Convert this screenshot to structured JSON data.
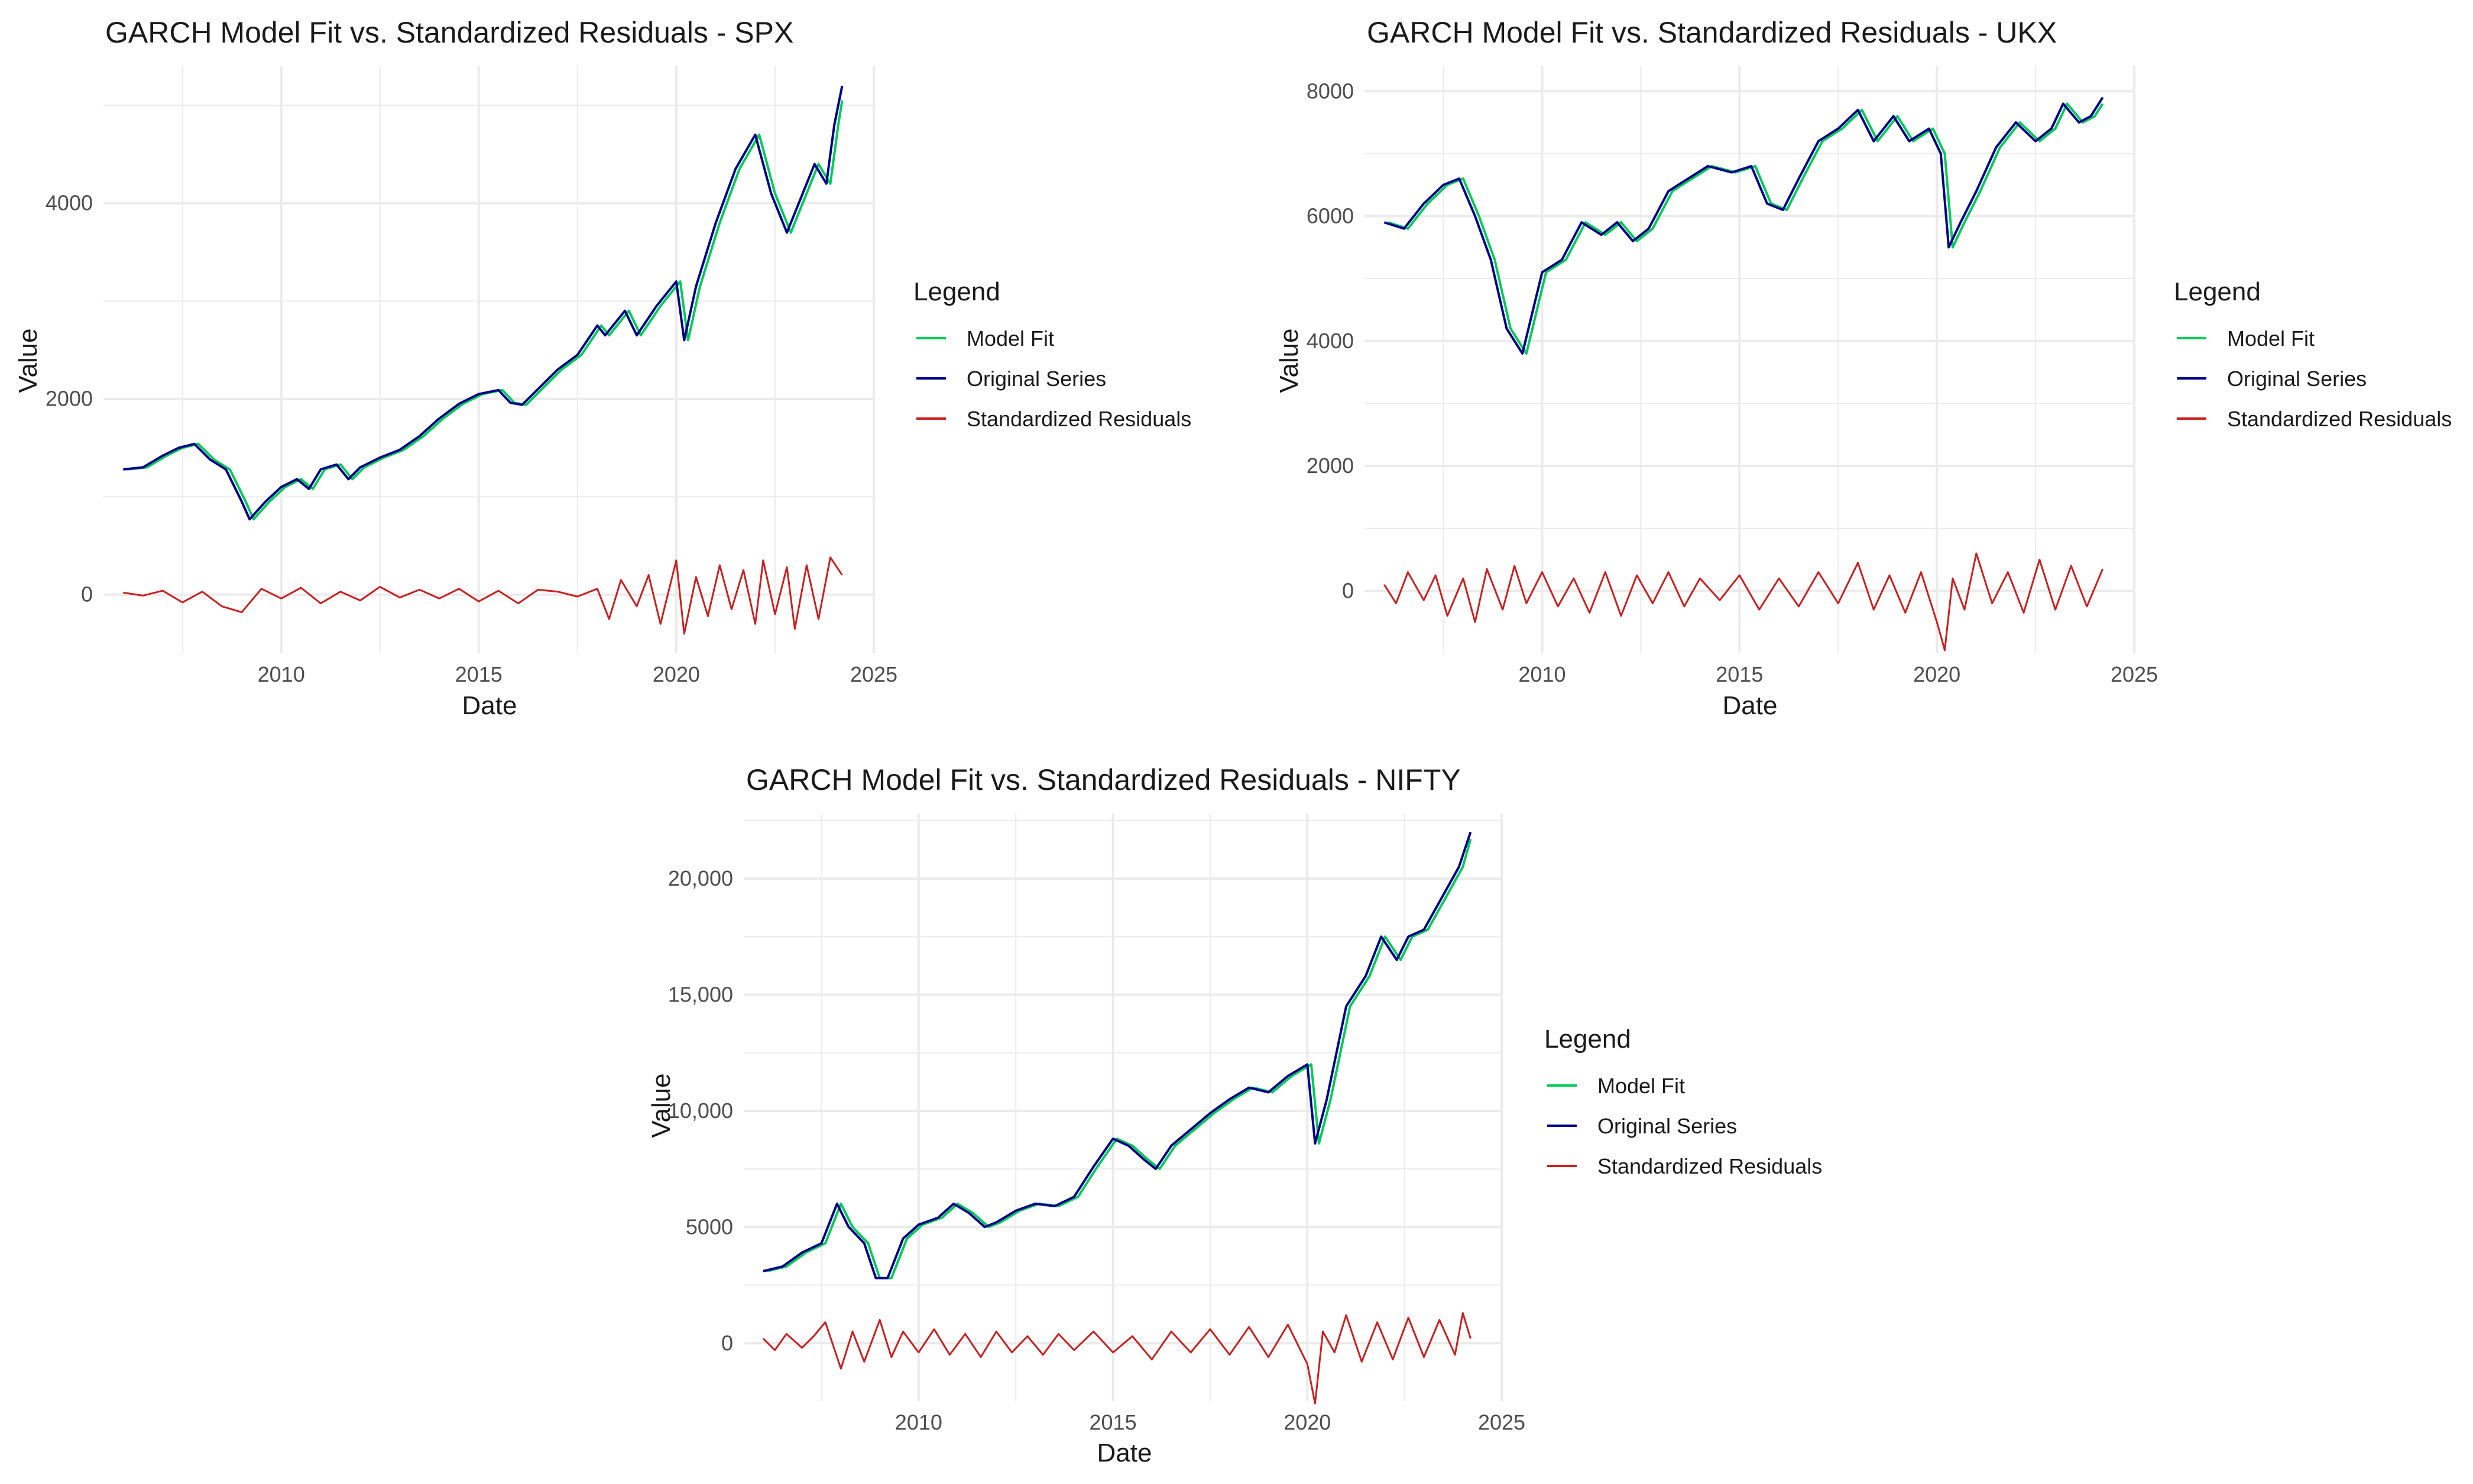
{
  "colors": {
    "model_fit": "#00cc55",
    "original_series": "#00008b",
    "standardized_residuals": "#cc1f1f",
    "grid": "#ebebeb",
    "text": "#1a1a1a",
    "tick_text": "#4d4d4d"
  },
  "chart_data": [
    {
      "id": "spx",
      "type": "line",
      "title": "GARCH Model Fit vs. Standardized Residuals - SPX",
      "xlabel": "Date",
      "ylabel": "Value",
      "xlim": [
        2005.5,
        2025
      ],
      "ylim": [
        -600,
        5400
      ],
      "xticks": [
        2010,
        2015,
        2020,
        2025
      ],
      "yticks": [
        0,
        2000,
        4000
      ],
      "ytick_labels": [
        "0",
        "2000",
        "4000"
      ],
      "legend": {
        "title": "Legend",
        "placement": "right",
        "entries": [
          "Model Fit",
          "Original Series",
          "Standardized Residuals"
        ]
      },
      "series": [
        {
          "name": "Original Series",
          "x": [
            2006.0,
            2006.5,
            2007.0,
            2007.4,
            2007.8,
            2008.2,
            2008.6,
            2009.0,
            2009.2,
            2009.6,
            2010.0,
            2010.4,
            2010.7,
            2011.0,
            2011.4,
            2011.7,
            2012.0,
            2012.5,
            2013.0,
            2013.5,
            2014.0,
            2014.5,
            2015.0,
            2015.5,
            2015.8,
            2016.1,
            2016.5,
            2017.0,
            2017.5,
            2018.0,
            2018.2,
            2018.7,
            2019.0,
            2019.5,
            2020.0,
            2020.2,
            2020.5,
            2021.0,
            2021.5,
            2022.0,
            2022.4,
            2022.8,
            2023.0,
            2023.5,
            2023.8,
            2024.0,
            2024.2
          ],
          "values": [
            1280,
            1300,
            1420,
            1500,
            1540,
            1380,
            1280,
            950,
            770,
            950,
            1100,
            1180,
            1080,
            1280,
            1330,
            1180,
            1300,
            1400,
            1480,
            1620,
            1800,
            1950,
            2050,
            2090,
            1960,
            1940,
            2100,
            2300,
            2450,
            2750,
            2650,
            2900,
            2650,
            2950,
            3200,
            2600,
            3150,
            3800,
            4350,
            4700,
            4100,
            3700,
            3900,
            4400,
            4200,
            4800,
            5200
          ]
        },
        {
          "name": "Model Fit",
          "x": [
            2006.1,
            2006.6,
            2007.1,
            2007.5,
            2007.9,
            2008.3,
            2008.7,
            2009.1,
            2009.3,
            2009.7,
            2010.1,
            2010.5,
            2010.8,
            2011.1,
            2011.5,
            2011.8,
            2012.1,
            2012.6,
            2013.1,
            2013.6,
            2014.1,
            2014.6,
            2015.1,
            2015.6,
            2015.9,
            2016.2,
            2016.6,
            2017.1,
            2017.6,
            2018.1,
            2018.3,
            2018.8,
            2019.1,
            2019.6,
            2020.1,
            2020.3,
            2020.6,
            2021.1,
            2021.6,
            2022.1,
            2022.5,
            2022.9,
            2023.1,
            2023.6,
            2023.9,
            2024.1,
            2024.2
          ],
          "values": [
            1280,
            1300,
            1420,
            1500,
            1540,
            1380,
            1280,
            950,
            770,
            950,
            1100,
            1180,
            1080,
            1280,
            1330,
            1180,
            1300,
            1400,
            1480,
            1620,
            1800,
            1950,
            2050,
            2090,
            1960,
            1940,
            2100,
            2300,
            2450,
            2750,
            2650,
            2900,
            2650,
            2950,
            3200,
            2600,
            3150,
            3800,
            4350,
            4700,
            4100,
            3700,
            3900,
            4400,
            4200,
            4800,
            5050
          ]
        },
        {
          "name": "Standardized Residuals",
          "x": [
            2006.0,
            2006.5,
            2007.0,
            2007.5,
            2008.0,
            2008.5,
            2009.0,
            2009.5,
            2010.0,
            2010.5,
            2011.0,
            2011.5,
            2012.0,
            2012.5,
            2013.0,
            2013.5,
            2014.0,
            2014.5,
            2015.0,
            2015.5,
            2016.0,
            2016.5,
            2017.0,
            2017.5,
            2018.0,
            2018.3,
            2018.6,
            2019.0,
            2019.3,
            2019.6,
            2020.0,
            2020.2,
            2020.5,
            2020.8,
            2021.1,
            2021.4,
            2021.7,
            2022.0,
            2022.2,
            2022.5,
            2022.8,
            2023.0,
            2023.3,
            2023.6,
            2023.9,
            2024.2
          ],
          "values": [
            20,
            -10,
            40,
            -80,
            30,
            -120,
            -180,
            60,
            -40,
            70,
            -90,
            30,
            -60,
            80,
            -30,
            50,
            -40,
            60,
            -70,
            40,
            -90,
            50,
            30,
            -20,
            60,
            -250,
            150,
            -120,
            200,
            -300,
            350,
            -400,
            180,
            -220,
            300,
            -150,
            250,
            -300,
            350,
            -200,
            280,
            -350,
            300,
            -250,
            380,
            200
          ]
        }
      ]
    },
    {
      "id": "ukx",
      "type": "line",
      "title": "GARCH Model Fit vs. Standardized Residuals - UKX",
      "xlabel": "Date",
      "ylabel": "Value",
      "xlim": [
        2005.5,
        2025
      ],
      "ylim": [
        -1000,
        8400
      ],
      "xticks": [
        2010,
        2015,
        2020,
        2025
      ],
      "yticks": [
        0,
        2000,
        4000,
        6000,
        8000
      ],
      "ytick_labels": [
        "0",
        "2000",
        "4000",
        "6000",
        "8000"
      ],
      "legend": {
        "title": "Legend",
        "placement": "right",
        "entries": [
          "Model Fit",
          "Original Series",
          "Standardized Residuals"
        ]
      },
      "series": [
        {
          "name": "Original Series",
          "x": [
            2006.0,
            2006.5,
            2007.0,
            2007.5,
            2007.9,
            2008.3,
            2008.7,
            2009.1,
            2009.5,
            2010.0,
            2010.5,
            2011.0,
            2011.5,
            2011.9,
            2012.3,
            2012.7,
            2013.2,
            2013.7,
            2014.2,
            2014.8,
            2015.3,
            2015.7,
            2016.1,
            2016.5,
            2017.0,
            2017.5,
            2018.0,
            2018.4,
            2018.9,
            2019.3,
            2019.8,
            2020.1,
            2020.3,
            2020.6,
            2021.0,
            2021.5,
            2022.0,
            2022.5,
            2022.9,
            2023.2,
            2023.6,
            2023.9,
            2024.2
          ],
          "values": [
            5900,
            5800,
            6200,
            6500,
            6600,
            6000,
            5300,
            4200,
            3800,
            5100,
            5300,
            5900,
            5700,
            5900,
            5600,
            5800,
            6400,
            6600,
            6800,
            6700,
            6800,
            6200,
            6100,
            6600,
            7200,
            7400,
            7700,
            7200,
            7600,
            7200,
            7400,
            7000,
            5500,
            5900,
            6400,
            7100,
            7500,
            7200,
            7400,
            7800,
            7500,
            7600,
            7900
          ]
        },
        {
          "name": "Model Fit",
          "x": [
            2006.1,
            2006.6,
            2007.1,
            2007.6,
            2008.0,
            2008.4,
            2008.8,
            2009.2,
            2009.6,
            2010.1,
            2010.6,
            2011.1,
            2011.6,
            2012.0,
            2012.4,
            2012.8,
            2013.3,
            2013.8,
            2014.3,
            2014.9,
            2015.4,
            2015.8,
            2016.2,
            2016.6,
            2017.1,
            2017.6,
            2018.1,
            2018.5,
            2019.0,
            2019.4,
            2019.9,
            2020.2,
            2020.4,
            2020.7,
            2021.1,
            2021.6,
            2022.1,
            2022.6,
            2023.0,
            2023.3,
            2023.7,
            2024.0,
            2024.2
          ],
          "values": [
            5900,
            5800,
            6200,
            6500,
            6600,
            6000,
            5300,
            4200,
            3800,
            5100,
            5300,
            5900,
            5700,
            5900,
            5600,
            5800,
            6400,
            6600,
            6800,
            6700,
            6800,
            6200,
            6100,
            6600,
            7200,
            7400,
            7700,
            7200,
            7600,
            7200,
            7400,
            7000,
            5500,
            5900,
            6400,
            7100,
            7500,
            7200,
            7400,
            7800,
            7500,
            7600,
            7800
          ]
        },
        {
          "name": "Standardized Residuals",
          "x": [
            2006.0,
            2006.3,
            2006.6,
            2007.0,
            2007.3,
            2007.6,
            2008.0,
            2008.3,
            2008.6,
            2009.0,
            2009.3,
            2009.6,
            2010.0,
            2010.4,
            2010.8,
            2011.2,
            2011.6,
            2012.0,
            2012.4,
            2012.8,
            2013.2,
            2013.6,
            2014.0,
            2014.5,
            2015.0,
            2015.5,
            2016.0,
            2016.5,
            2017.0,
            2017.5,
            2018.0,
            2018.4,
            2018.8,
            2019.2,
            2019.6,
            2020.0,
            2020.2,
            2020.4,
            2020.7,
            2021.0,
            2021.4,
            2021.8,
            2022.2,
            2022.6,
            2023.0,
            2023.4,
            2023.8,
            2024.2
          ],
          "values": [
            100,
            -200,
            300,
            -150,
            250,
            -400,
            200,
            -500,
            350,
            -300,
            400,
            -200,
            300,
            -250,
            200,
            -350,
            300,
            -400,
            250,
            -200,
            300,
            -250,
            200,
            -150,
            250,
            -300,
            200,
            -250,
            300,
            -200,
            450,
            -300,
            250,
            -350,
            300,
            -500,
            -950,
            200,
            -300,
            600,
            -200,
            300,
            -350,
            500,
            -300,
            400,
            -250,
            350
          ]
        }
      ]
    },
    {
      "id": "nifty",
      "type": "line",
      "title": "GARCH Model Fit vs. Standardized Residuals - NIFTY",
      "xlabel": "Date",
      "ylabel": "Value",
      "xlim": [
        2005.5,
        2025
      ],
      "ylim": [
        -2500,
        22800
      ],
      "xticks": [
        2010,
        2015,
        2020,
        2025
      ],
      "yticks": [
        0,
        5000,
        10000,
        15000,
        20000
      ],
      "ytick_labels": [
        "0",
        "5000",
        "10,000",
        "15,000",
        "20,000"
      ],
      "legend": {
        "title": "Legend",
        "placement": "right",
        "entries": [
          "Model Fit",
          "Original Series",
          "Standardized Residuals"
        ]
      },
      "series": [
        {
          "name": "Original Series",
          "x": [
            2006.0,
            2006.5,
            2007.0,
            2007.5,
            2007.9,
            2008.2,
            2008.6,
            2008.9,
            2009.2,
            2009.6,
            2010.0,
            2010.5,
            2010.9,
            2011.3,
            2011.7,
            2012.0,
            2012.5,
            2013.0,
            2013.5,
            2014.0,
            2014.5,
            2015.0,
            2015.4,
            2015.8,
            2016.1,
            2016.5,
            2017.0,
            2017.5,
            2018.0,
            2018.5,
            2019.0,
            2019.5,
            2020.0,
            2020.2,
            2020.5,
            2021.0,
            2021.5,
            2021.9,
            2022.3,
            2022.6,
            2023.0,
            2023.5,
            2023.9,
            2024.2
          ],
          "values": [
            3100,
            3300,
            3900,
            4300,
            6000,
            5000,
            4300,
            2800,
            2800,
            4500,
            5100,
            5400,
            6000,
            5600,
            5000,
            5200,
            5700,
            6000,
            5900,
            6300,
            7600,
            8800,
            8500,
            7900,
            7500,
            8500,
            9200,
            9900,
            10500,
            11000,
            10800,
            11500,
            12000,
            8600,
            10500,
            14500,
            15800,
            17500,
            16500,
            17500,
            17800,
            19300,
            20500,
            22000
          ]
        },
        {
          "name": "Model Fit",
          "x": [
            2006.1,
            2006.6,
            2007.1,
            2007.6,
            2008.0,
            2008.3,
            2008.7,
            2009.0,
            2009.3,
            2009.7,
            2010.1,
            2010.6,
            2011.0,
            2011.4,
            2011.8,
            2012.1,
            2012.6,
            2013.1,
            2013.6,
            2014.1,
            2014.6,
            2015.1,
            2015.5,
            2015.9,
            2016.2,
            2016.6,
            2017.1,
            2017.6,
            2018.1,
            2018.6,
            2019.1,
            2019.6,
            2020.1,
            2020.3,
            2020.6,
            2021.1,
            2021.6,
            2022.0,
            2022.4,
            2022.7,
            2023.1,
            2023.6,
            2024.0,
            2024.2
          ],
          "values": [
            3100,
            3300,
            3900,
            4300,
            6000,
            5000,
            4300,
            2800,
            2800,
            4500,
            5100,
            5400,
            6000,
            5600,
            5000,
            5200,
            5700,
            6000,
            5900,
            6300,
            7600,
            8800,
            8500,
            7900,
            7500,
            8500,
            9200,
            9900,
            10500,
            11000,
            10800,
            11500,
            12000,
            8600,
            10500,
            14500,
            15800,
            17500,
            16500,
            17500,
            17800,
            19300,
            20500,
            21700
          ]
        },
        {
          "name": "Standardized Residuals",
          "x": [
            2006.0,
            2006.3,
            2006.6,
            2007.0,
            2007.3,
            2007.6,
            2008.0,
            2008.3,
            2008.6,
            2009.0,
            2009.3,
            2009.6,
            2010.0,
            2010.4,
            2010.8,
            2011.2,
            2011.6,
            2012.0,
            2012.4,
            2012.8,
            2013.2,
            2013.6,
            2014.0,
            2014.5,
            2015.0,
            2015.5,
            2016.0,
            2016.5,
            2017.0,
            2017.5,
            2018.0,
            2018.5,
            2019.0,
            2019.5,
            2020.0,
            2020.2,
            2020.4,
            2020.7,
            2021.0,
            2021.4,
            2021.8,
            2022.2,
            2022.6,
            2023.0,
            2023.4,
            2023.8,
            2024.0,
            2024.2
          ],
          "values": [
            200,
            -300,
            400,
            -200,
            300,
            900,
            -1100,
            500,
            -800,
            1000,
            -600,
            500,
            -400,
            600,
            -500,
            400,
            -600,
            500,
            -400,
            300,
            -500,
            400,
            -300,
            500,
            -400,
            300,
            -700,
            500,
            -400,
            600,
            -500,
            700,
            -600,
            800,
            -900,
            -2600,
            500,
            -400,
            1200,
            -800,
            900,
            -700,
            1100,
            -600,
            1000,
            -500,
            1300,
            200
          ]
        }
      ]
    }
  ]
}
